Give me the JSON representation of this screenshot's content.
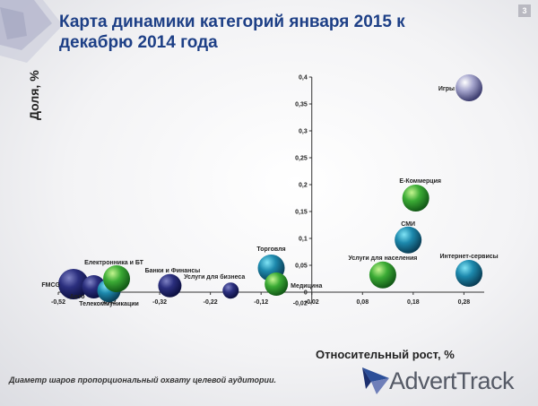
{
  "title": "Карта динамики категорий января 2015 к декабрю 2014 года",
  "page_number": "3",
  "footnote": "Диаметр шаров пропорциональный охвату целевой аудитории.",
  "brand": {
    "name": "AdvertTrack"
  },
  "colors": {
    "title": "#1d3f86",
    "navy": "#262a72",
    "teal": "#1b7ea0",
    "green": "#3fb23a",
    "lavender": "#9a9ac2"
  },
  "chart_data": {
    "type": "scatter",
    "title": "",
    "xlabel": "Относительный рост, %",
    "ylabel": "Доля, %",
    "xlim": [
      -0.52,
      0.32
    ],
    "ylim": [
      -0.02,
      0.4
    ],
    "x_ticks": [
      "-0,52",
      "-0,42",
      "-0,32",
      "-0,22",
      "-0,12",
      "-0,02",
      "0,08",
      "0,18",
      "0,28"
    ],
    "y_ticks": [
      "-0,02",
      "0",
      "0,05",
      "0,1",
      "0,15",
      "0,2",
      "0,25",
      "0,3",
      "0,35",
      "0,4"
    ],
    "grid": false,
    "points": [
      {
        "label": "FMCG",
        "x": -0.49,
        "y": 0.015,
        "size": 3,
        "color": "navy"
      },
      {
        "label": "Авто",
        "x": -0.45,
        "y": 0.01,
        "size": 2,
        "color": "navy"
      },
      {
        "label": "Телекоммуникации",
        "x": -0.42,
        "y": 0.003,
        "size": 2,
        "color": "teal"
      },
      {
        "label": "Електронника и БТ",
        "x": -0.405,
        "y": 0.025,
        "size": 2.5,
        "color": "green"
      },
      {
        "label": "Банки и Финансы",
        "x": -0.3,
        "y": 0.012,
        "size": 2,
        "color": "navy"
      },
      {
        "label": "Услуги для бизнеса",
        "x": -0.18,
        "y": 0.003,
        "size": 1,
        "color": "navy"
      },
      {
        "label": "Торговля",
        "x": -0.1,
        "y": 0.045,
        "size": 2.5,
        "color": "teal"
      },
      {
        "label": "Медицина",
        "x": -0.09,
        "y": 0.015,
        "size": 2,
        "color": "green"
      },
      {
        "label": "Услуги для населения",
        "x": 0.12,
        "y": 0.032,
        "size": 2.5,
        "color": "green"
      },
      {
        "label": "СМИ",
        "x": 0.17,
        "y": 0.097,
        "size": 2.5,
        "color": "teal"
      },
      {
        "label": "Е-Коммерция",
        "x": 0.185,
        "y": 0.175,
        "size": 2.5,
        "color": "green"
      },
      {
        "label": "Интернет-сервисы",
        "x": 0.29,
        "y": 0.035,
        "size": 2.5,
        "color": "teal"
      },
      {
        "label": "Игры",
        "x": 0.29,
        "y": 0.38,
        "size": 2.5,
        "color": "lavender"
      }
    ]
  }
}
